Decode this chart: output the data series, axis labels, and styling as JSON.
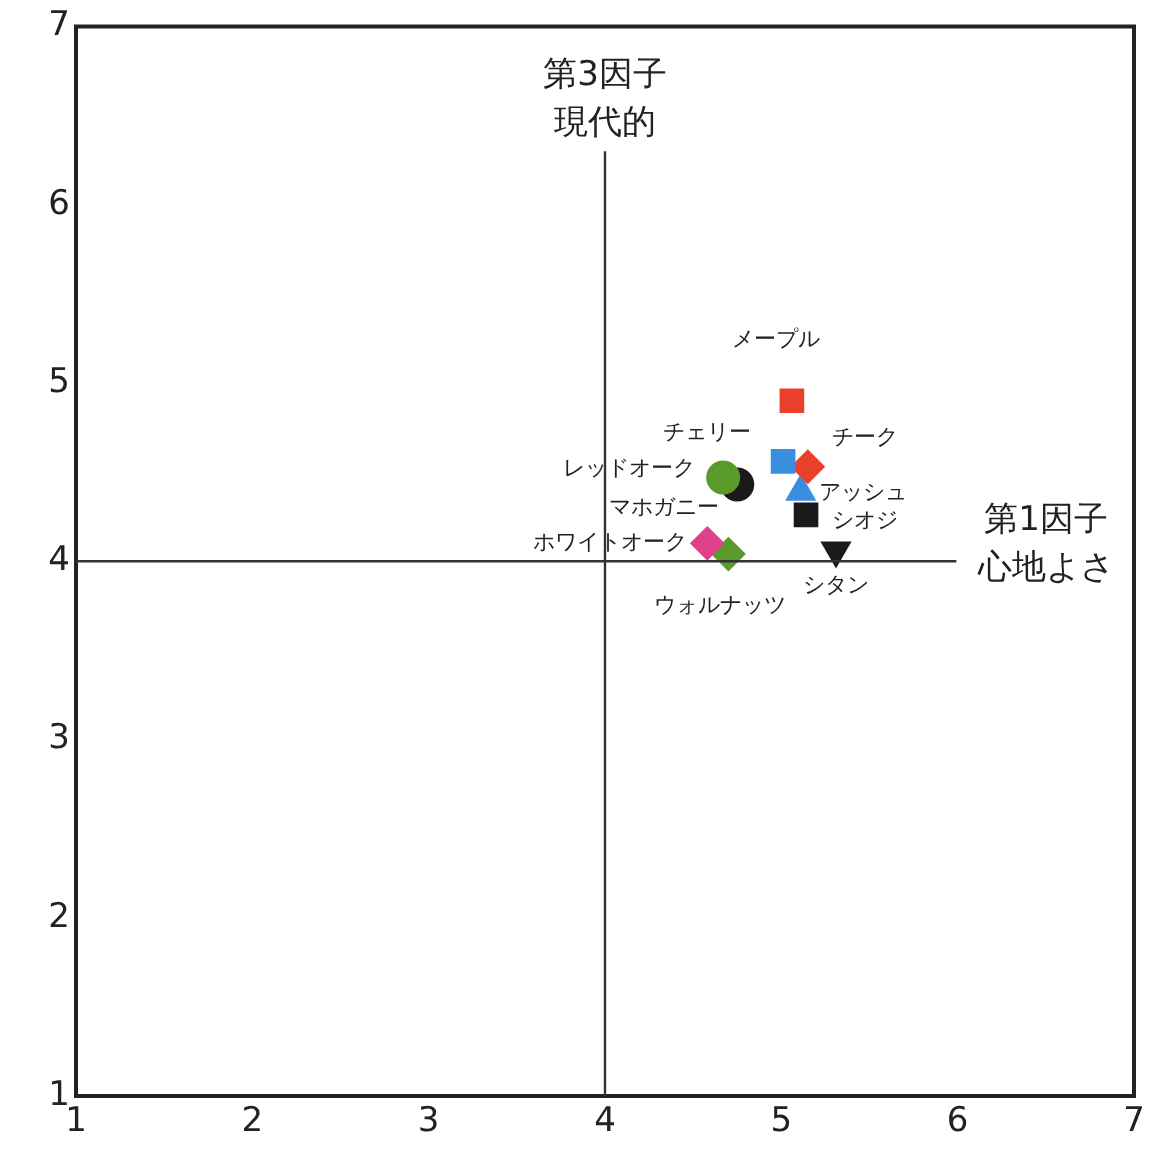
{
  "chart_data": {
    "type": "scatter",
    "xlim": [
      1,
      7
    ],
    "ylim": [
      1,
      7
    ],
    "xticks": [
      1,
      2,
      3,
      4,
      5,
      6,
      7
    ],
    "yticks": [
      1,
      2,
      3,
      4,
      5,
      6,
      7
    ],
    "grid": false,
    "legend": false,
    "ref_lines": [
      {
        "axis": "x",
        "value": 4,
        "label": "第3因子現代的",
        "color": "#333333"
      },
      {
        "axis": "y",
        "value": 4,
        "label": "第1因子心地よさ",
        "color": "#333333"
      }
    ],
    "series": [
      {
        "name": "メープル",
        "color": "#e8402a",
        "marker": "square",
        "x": [
          5.06
        ],
        "values": [
          4.9
        ]
      },
      {
        "name": "チェリー",
        "color": "#3a8ee0",
        "marker": "square",
        "x": [
          5.01
        ],
        "values": [
          4.56
        ]
      },
      {
        "name": "チーク",
        "color": "#e8402a",
        "marker": "diamond",
        "x": [
          5.15
        ],
        "values": [
          4.53
        ]
      },
      {
        "name": "アッシュ",
        "color": "#3a8ee0",
        "marker": "triangle",
        "x": [
          5.11
        ],
        "values": [
          4.39
        ]
      },
      {
        "name": "シオジ",
        "color": "#1a1a1a",
        "marker": "square",
        "x": [
          5.14
        ],
        "values": [
          4.26
        ]
      },
      {
        "name": "シタン",
        "color": "#1a1a1a",
        "marker": "triangle-down",
        "x": [
          5.31
        ],
        "values": [
          4.06
        ]
      },
      {
        "name": "レッドオーク",
        "color": "#5a9a2a",
        "marker": "circle",
        "x": [
          4.67
        ],
        "values": [
          4.47
        ]
      },
      {
        "name": "マホガニー",
        "color": "#1a1a1a",
        "marker": "circle",
        "x": [
          4.75
        ],
        "values": [
          4.43
        ]
      },
      {
        "name": "ホワイトオーク",
        "color": "#e0408a",
        "marker": "diamond",
        "x": [
          4.58
        ],
        "values": [
          4.1
        ]
      },
      {
        "name": "ウォルナッツ",
        "color": "#5a9a2a",
        "marker": "diamond",
        "x": [
          4.7
        ],
        "values": [
          4.04
        ]
      }
    ]
  }
}
